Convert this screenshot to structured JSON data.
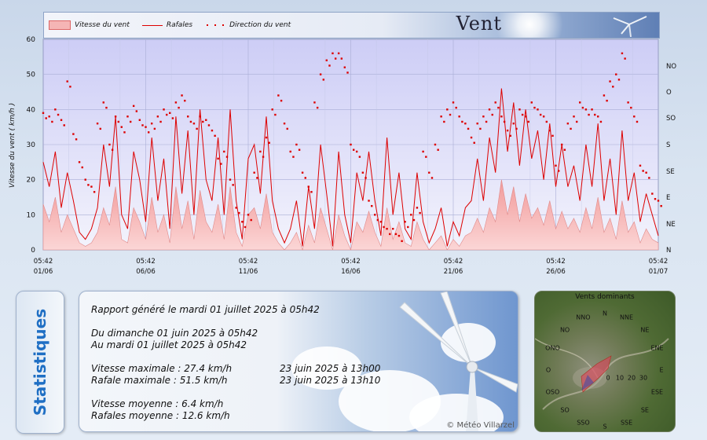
{
  "header": {
    "title": "Vent"
  },
  "chart_data": {
    "type": "line",
    "ylabel": "Vitesse du vent  ( km/h )",
    "ylim": [
      0,
      60
    ],
    "yticks": [
      0,
      10,
      20,
      30,
      40,
      50,
      60
    ],
    "right_axis_labels": [
      "N",
      "NE",
      "E",
      "SE",
      "S",
      "SO",
      "O",
      "NO"
    ],
    "xticks": [
      {
        "time": "05:42",
        "date": "01/06"
      },
      {
        "time": "05:42",
        "date": "06/06"
      },
      {
        "time": "05:42",
        "date": "11/06"
      },
      {
        "time": "05:42",
        "date": "16/06"
      },
      {
        "time": "05:42",
        "date": "21/06"
      },
      {
        "time": "05:42",
        "date": "26/06"
      },
      {
        "time": "05:42",
        "date": "01/07"
      }
    ],
    "series": [
      {
        "name": "Vitesse du vent",
        "kind": "area",
        "values": [
          13,
          8,
          15,
          5,
          10,
          6,
          2,
          1,
          2,
          5,
          12,
          7,
          18,
          3,
          2,
          12,
          8,
          3,
          15,
          5,
          10,
          2,
          18,
          6,
          14,
          3,
          17,
          8,
          5,
          13,
          3,
          18,
          5,
          1,
          10,
          12,
          6,
          16,
          5,
          2,
          0,
          2,
          5,
          0,
          7,
          2,
          12,
          6,
          0,
          10,
          4,
          0,
          8,
          5,
          11,
          5,
          1,
          12,
          3,
          8,
          2,
          1,
          8,
          3,
          0,
          2,
          4,
          0,
          3,
          1,
          4,
          5,
          9,
          5,
          12,
          8,
          20,
          10,
          18,
          8,
          16,
          9,
          12,
          7,
          14,
          6,
          11,
          6,
          9,
          5,
          12,
          6,
          15,
          5,
          9,
          3,
          14,
          5,
          8,
          2,
          6,
          3,
          2
        ]
      },
      {
        "name": "Rafales",
        "kind": "line",
        "values": [
          25,
          18,
          28,
          12,
          22,
          14,
          5,
          3,
          6,
          12,
          30,
          18,
          38,
          10,
          6,
          28,
          20,
          8,
          32,
          14,
          26,
          6,
          38,
          16,
          34,
          10,
          40,
          20,
          14,
          32,
          10,
          40,
          14,
          3,
          26,
          30,
          16,
          38,
          14,
          6,
          2,
          6,
          14,
          1,
          18,
          6,
          30,
          16,
          1,
          28,
          10,
          2,
          22,
          14,
          28,
          14,
          4,
          32,
          10,
          22,
          6,
          3,
          22,
          8,
          2,
          6,
          12,
          1,
          8,
          4,
          12,
          14,
          26,
          14,
          32,
          22,
          46,
          28,
          42,
          24,
          40,
          26,
          34,
          20,
          36,
          18,
          30,
          18,
          24,
          14,
          30,
          18,
          36,
          14,
          26,
          10,
          34,
          14,
          22,
          8,
          16,
          10,
          4
        ]
      },
      {
        "name": "Direction du vent",
        "kind": "points",
        "values": [
          39,
          38,
          40,
          37,
          48,
          33,
          25,
          20,
          18,
          36,
          42,
          30,
          38,
          35,
          38,
          41,
          37,
          35,
          36,
          38,
          40,
          39,
          42,
          44,
          38,
          36,
          38,
          37,
          34,
          26,
          28,
          20,
          12,
          8,
          10,
          22,
          28,
          32,
          40,
          44,
          36,
          28,
          30,
          22,
          18,
          42,
          50,
          54,
          56,
          56,
          52,
          30,
          28,
          22,
          14,
          10,
          8,
          6,
          6,
          4,
          8,
          10,
          12,
          28,
          22,
          30,
          38,
          40,
          42,
          38,
          36,
          32,
          36,
          38,
          40,
          42,
          38,
          34,
          36,
          40,
          38,
          42,
          40,
          38,
          34,
          24,
          30,
          36,
          38,
          42,
          40,
          40,
          38,
          44,
          48,
          50,
          56,
          42,
          38,
          24,
          22,
          16,
          14
        ]
      }
    ]
  },
  "report": {
    "line1": "Rapport généré le mardi 01 juillet 2025 à 05h42",
    "line2": "Du dimanche 01 juin 2025 à 05h42",
    "line3": "Au mardi 01 juillet 2025 à 05h42",
    "max_speed_label": "Vitesse maximale : 27.4 km/h",
    "max_speed_date": "23 juin 2025 à 13h00",
    "max_gust_label": "Rafale maximale : 51.5 km/h",
    "max_gust_date": "23 juin 2025 à 13h10",
    "avg_speed_label": "Vitesse moyenne : 6.4 km/h",
    "avg_gust_label": "Rafales moyenne : 12.6 km/h",
    "copyright": "© Météo Villarzel"
  },
  "stats_label": "Statistiques",
  "rose": {
    "title": "Vents dominants",
    "directions": [
      "N",
      "NNE",
      "NE",
      "ENE",
      "E",
      "ESE",
      "SE",
      "SSE",
      "S",
      "SSO",
      "SO",
      "OSO",
      "O",
      "ONO",
      "NO",
      "NNO"
    ],
    "rings": [
      "0",
      "10",
      "20",
      "30"
    ],
    "petal_color": "#e83a55"
  }
}
